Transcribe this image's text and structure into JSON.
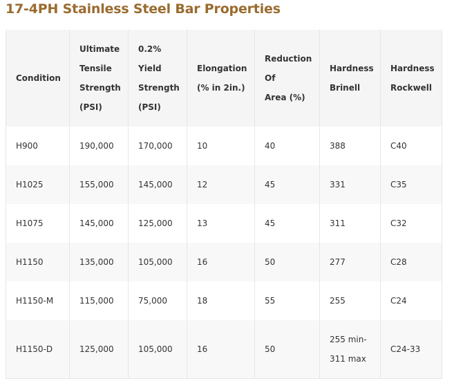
{
  "title": "17-4PH Stainless Steel Bar Properties",
  "columns": [
    {
      "lines": [
        "Condition"
      ]
    },
    {
      "lines": [
        "Ultimate",
        "Tensile",
        "Strength",
        "(PSI)"
      ]
    },
    {
      "lines": [
        "0.2%",
        "Yield",
        "Strength",
        "(PSI)"
      ]
    },
    {
      "lines": [
        "Elongation",
        "(% in 2in.)"
      ]
    },
    {
      "lines": [
        "Reduction",
        "Of",
        "Area (%)"
      ]
    },
    {
      "lines": [
        "Hardness",
        "Brinell"
      ]
    },
    {
      "lines": [
        "Hardness",
        "Rockwell"
      ]
    }
  ],
  "rows": [
    {
      "condition": "H900",
      "ultimate": "190,000",
      "yield": "170,000",
      "elongation": "10",
      "reduction": "40",
      "brinell": [
        "388"
      ],
      "rockwell": "C40"
    },
    {
      "condition": "H1025",
      "ultimate": "155,000",
      "yield": "145,000",
      "elongation": "12",
      "reduction": "45",
      "brinell": [
        "331"
      ],
      "rockwell": "C35"
    },
    {
      "condition": "H1075",
      "ultimate": "145,000",
      "yield": "125,000",
      "elongation": "13",
      "reduction": "45",
      "brinell": [
        "311"
      ],
      "rockwell": "C32"
    },
    {
      "condition": "H1150",
      "ultimate": "135,000",
      "yield": "105,000",
      "elongation": "16",
      "reduction": "50",
      "brinell": [
        "277"
      ],
      "rockwell": "C28"
    },
    {
      "condition": "H1150-M",
      "ultimate": "115,000",
      "yield": "75,000",
      "elongation": "18",
      "reduction": "55",
      "brinell": [
        "255"
      ],
      "rockwell": "C24"
    },
    {
      "condition": "H1150-D",
      "ultimate": "125,000",
      "yield": "105,000",
      "elongation": "16",
      "reduction": "50",
      "brinell": [
        "255 min-",
        "311 max"
      ],
      "rockwell": "C24-33"
    }
  ]
}
